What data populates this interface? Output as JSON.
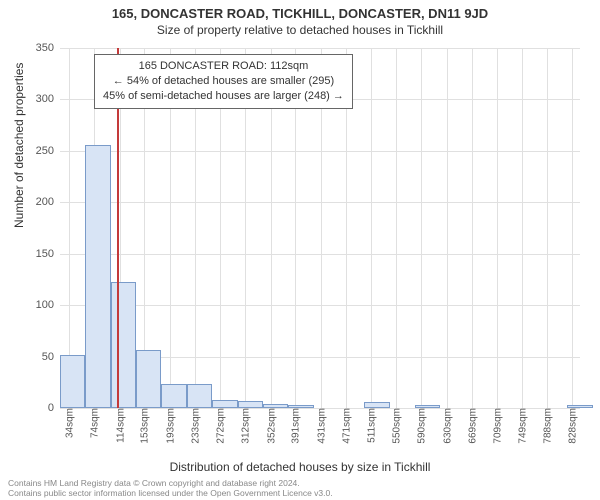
{
  "titles": {
    "main": "165, DONCASTER ROAD, TICKHILL, DONCASTER, DN11 9JD",
    "sub": "Size of property relative to detached houses in Tickhill"
  },
  "axes": {
    "ylabel": "Number of detached properties",
    "xlabel": "Distribution of detached houses by size in Tickhill",
    "label_fontsize": 12,
    "tick_fontsize": 11
  },
  "chart": {
    "type": "histogram",
    "background_color": "#ffffff",
    "grid_color": "#e0e0e0",
    "bar_fill": "#d8e4f5",
    "bar_stroke": "#7a9bc9",
    "bar_stroke_width": 1,
    "marker_color": "#c43a3a",
    "xmin": 20,
    "xmax": 840,
    "ylim": [
      0,
      350
    ],
    "ytick_step": 50,
    "x_ticks": [
      34,
      74,
      114,
      153,
      193,
      233,
      272,
      312,
      352,
      391,
      431,
      471,
      511,
      550,
      590,
      630,
      669,
      709,
      749,
      788,
      828
    ],
    "x_tick_unit": "sqm",
    "bin_width": 40,
    "bins": [
      {
        "start": 20,
        "count": 52
      },
      {
        "start": 60,
        "count": 256
      },
      {
        "start": 100,
        "count": 123
      },
      {
        "start": 140,
        "count": 56
      },
      {
        "start": 180,
        "count": 23
      },
      {
        "start": 220,
        "count": 23
      },
      {
        "start": 260,
        "count": 8
      },
      {
        "start": 300,
        "count": 7
      },
      {
        "start": 340,
        "count": 4
      },
      {
        "start": 380,
        "count": 3
      },
      {
        "start": 420,
        "count": 0
      },
      {
        "start": 460,
        "count": 0
      },
      {
        "start": 500,
        "count": 6
      },
      {
        "start": 540,
        "count": 0
      },
      {
        "start": 580,
        "count": 3
      },
      {
        "start": 620,
        "count": 0
      },
      {
        "start": 660,
        "count": 0
      },
      {
        "start": 700,
        "count": 0
      },
      {
        "start": 740,
        "count": 0
      },
      {
        "start": 780,
        "count": 0
      },
      {
        "start": 820,
        "count": 3
      }
    ],
    "marker_value": 112
  },
  "info_box": {
    "line1": "165 DONCASTER ROAD: 112sqm",
    "line2": "← 54% of detached houses are smaller (295)",
    "line3": "45% of semi-detached houses are larger (248) →",
    "border_color": "#666666",
    "bg_color": "#ffffff",
    "fontsize": 11
  },
  "attribution": {
    "line1": "Contains HM Land Registry data © Crown copyright and database right 2024.",
    "line2": "Contains public sector information licensed under the Open Government Licence v3.0."
  }
}
